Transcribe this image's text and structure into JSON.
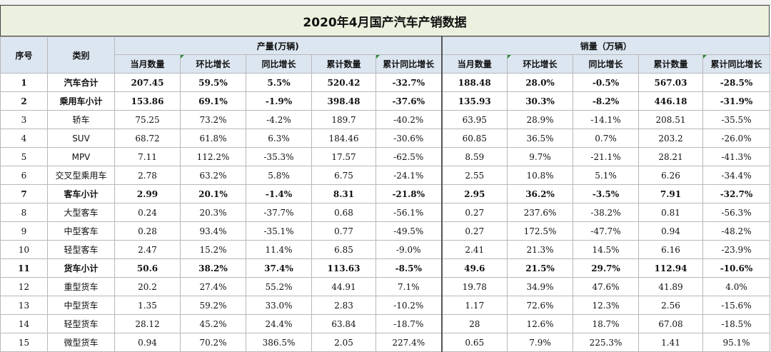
{
  "title": "2020年4月国产汽车产销数据",
  "headers": {
    "seq": "序号",
    "category": "类别",
    "production_group": "产量(万辆)",
    "sales_group": "销量（万辆）",
    "sub": [
      "当月数量",
      "环比增长",
      "同比增长",
      "累计数量",
      "累计同比增长"
    ]
  },
  "rows": [
    {
      "seq": "1",
      "cat": "汽车合计",
      "p": [
        "207.45",
        "59.5%",
        "5.5%",
        "520.42",
        "-32.7%"
      ],
      "s": [
        "188.48",
        "28.0%",
        "-0.5%",
        "567.03",
        "-28.5%"
      ],
      "bold": true
    },
    {
      "seq": "2",
      "cat": "乘用车小计",
      "p": [
        "153.86",
        "69.1%",
        "-1.9%",
        "398.48",
        "-37.6%"
      ],
      "s": [
        "135.93",
        "30.3%",
        "-8.2%",
        "446.18",
        "-31.9%"
      ],
      "bold": true
    },
    {
      "seq": "3",
      "cat": "轿车",
      "p": [
        "75.25",
        "73.2%",
        "-4.2%",
        "189.7",
        "-40.2%"
      ],
      "s": [
        "63.95",
        "28.9%",
        "-14.1%",
        "208.51",
        "-35.5%"
      ],
      "bold": false
    },
    {
      "seq": "4",
      "cat": "SUV",
      "p": [
        "68.72",
        "61.8%",
        "6.3%",
        "184.46",
        "-30.6%"
      ],
      "s": [
        "60.85",
        "36.5%",
        "0.7%",
        "203.2",
        "-26.0%"
      ],
      "bold": false
    },
    {
      "seq": "5",
      "cat": "MPV",
      "p": [
        "7.11",
        "112.2%",
        "-35.3%",
        "17.57",
        "-62.5%"
      ],
      "s": [
        "8.59",
        "9.7%",
        "-21.1%",
        "28.21",
        "-41.3%"
      ],
      "bold": false
    },
    {
      "seq": "6",
      "cat": "交叉型乘用车",
      "p": [
        "2.78",
        "63.2%",
        "5.8%",
        "6.75",
        "-24.1%"
      ],
      "s": [
        "2.55",
        "10.8%",
        "5.1%",
        "6.26",
        "-34.4%"
      ],
      "bold": false
    },
    {
      "seq": "7",
      "cat": "客车小计",
      "p": [
        "2.99",
        "20.1%",
        "-1.4%",
        "8.31",
        "-21.8%"
      ],
      "s": [
        "2.95",
        "36.2%",
        "-3.5%",
        "7.91",
        "-32.7%"
      ],
      "bold": true
    },
    {
      "seq": "8",
      "cat": "大型客车",
      "p": [
        "0.24",
        "20.3%",
        "-37.7%",
        "0.68",
        "-56.1%"
      ],
      "s": [
        "0.27",
        "237.6%",
        "-38.2%",
        "0.81",
        "-56.3%"
      ],
      "bold": false
    },
    {
      "seq": "9",
      "cat": "中型客车",
      "p": [
        "0.28",
        "93.4%",
        "-35.1%",
        "0.77",
        "-49.5%"
      ],
      "s": [
        "0.27",
        "172.5%",
        "-47.7%",
        "0.94",
        "-48.2%"
      ],
      "bold": false
    },
    {
      "seq": "10",
      "cat": "轻型客车",
      "p": [
        "2.47",
        "15.2%",
        "11.4%",
        "6.85",
        "-9.0%"
      ],
      "s": [
        "2.41",
        "21.3%",
        "14.5%",
        "6.16",
        "-23.9%"
      ],
      "bold": false
    },
    {
      "seq": "11",
      "cat": "货车小计",
      "p": [
        "50.6",
        "38.2%",
        "37.4%",
        "113.63",
        "-8.5%"
      ],
      "s": [
        "49.6",
        "21.5%",
        "29.7%",
        "112.94",
        "-10.6%"
      ],
      "bold": true
    },
    {
      "seq": "12",
      "cat": "重型货车",
      "p": [
        "20.2",
        "27.4%",
        "55.2%",
        "44.91",
        "7.1%"
      ],
      "s": [
        "19.78",
        "34.9%",
        "47.6%",
        "41.89",
        "4.0%"
      ],
      "bold": false
    },
    {
      "seq": "13",
      "cat": "中型货车",
      "p": [
        "1.35",
        "59.2%",
        "33.0%",
        "2.83",
        "-10.2%"
      ],
      "s": [
        "1.17",
        "72.6%",
        "12.3%",
        "2.56",
        "-15.6%"
      ],
      "bold": false
    },
    {
      "seq": "14",
      "cat": "轻型货车",
      "p": [
        "28.12",
        "45.2%",
        "24.4%",
        "63.84",
        "-18.7%"
      ],
      "s": [
        "28",
        "12.6%",
        "18.7%",
        "67.08",
        "-18.5%"
      ],
      "bold": false
    },
    {
      "seq": "15",
      "cat": "微型货车",
      "p": [
        "0.94",
        "70.2%",
        "386.5%",
        "2.05",
        "227.4%"
      ],
      "s": [
        "0.65",
        "7.9%",
        "225.3%",
        "1.41",
        "95.1%"
      ],
      "bold": false
    }
  ]
}
